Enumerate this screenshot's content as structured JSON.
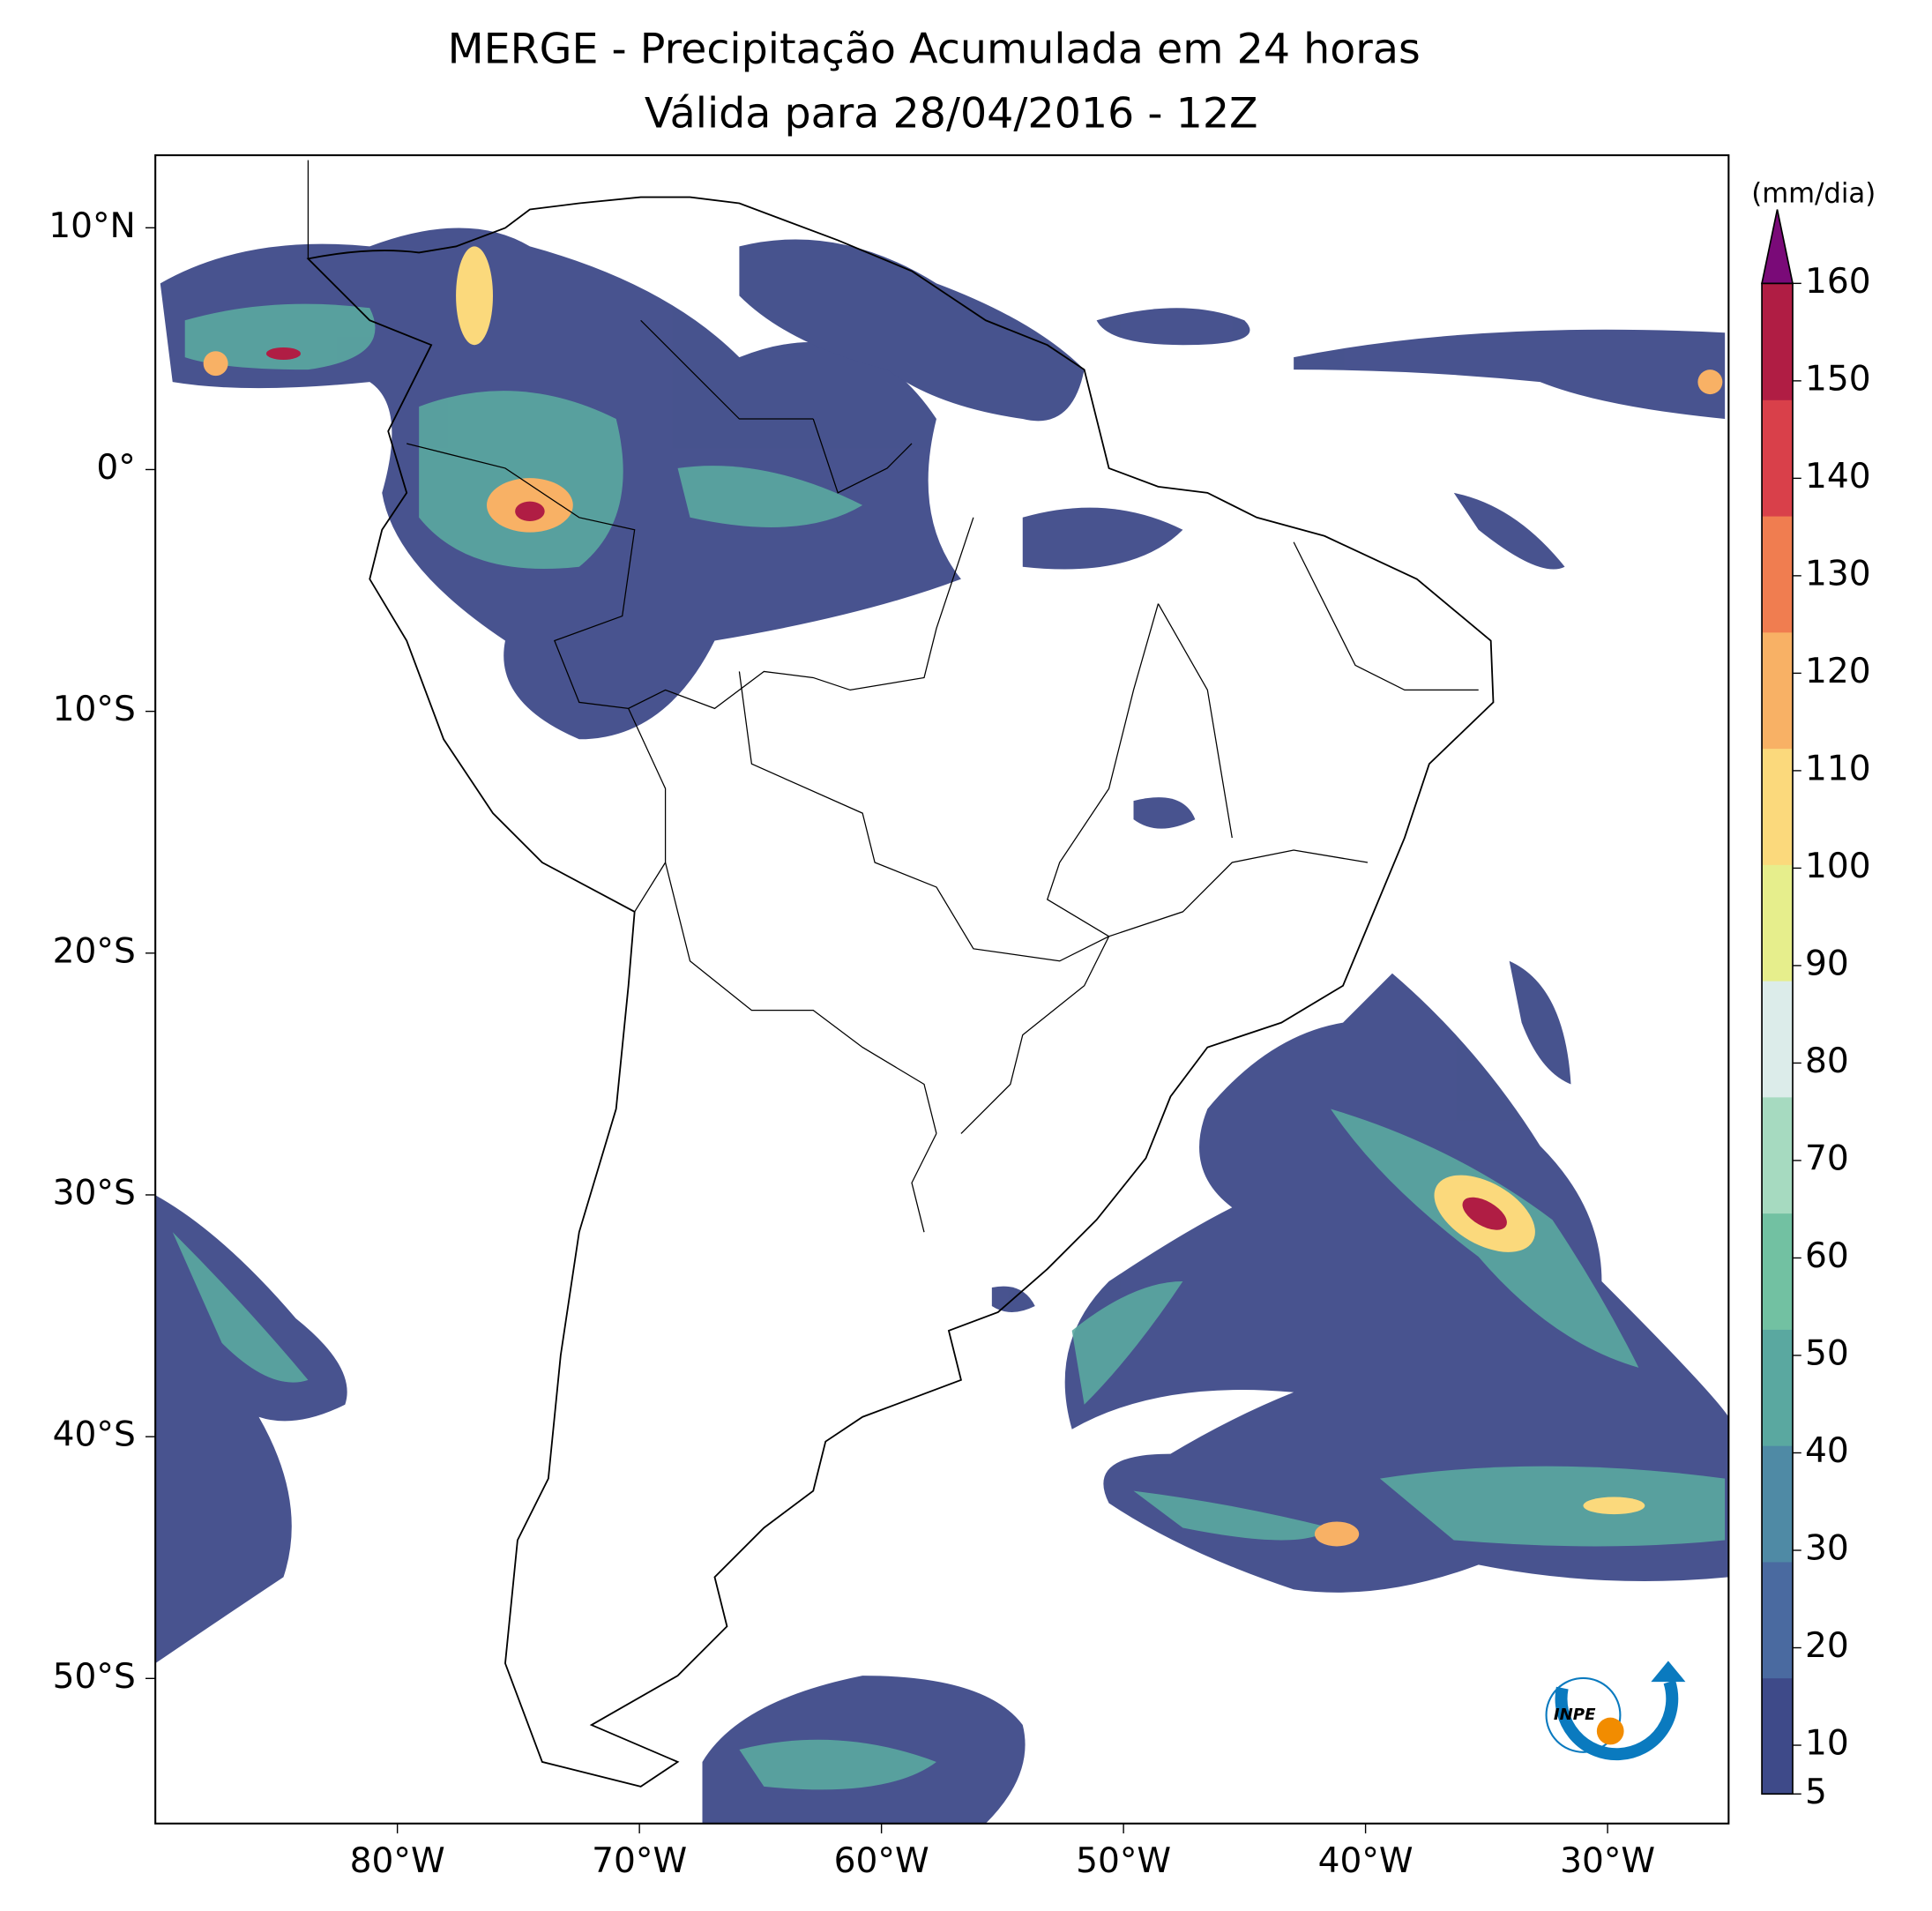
{
  "map": {
    "title": [
      "MERGE - Precipitação Acumulada em 24 horas",
      "Válida para 28/04/2016 - 12Z"
    ],
    "xlim": [
      -90,
      -25
    ],
    "ylim": [
      -56,
      13
    ],
    "xticks": [
      {
        "value": -80,
        "label": "80°W"
      },
      {
        "value": -70,
        "label": "70°W"
      },
      {
        "value": -60,
        "label": "60°W"
      },
      {
        "value": -50,
        "label": "50°W"
      },
      {
        "value": -40,
        "label": "40°W"
      },
      {
        "value": -30,
        "label": "30°W"
      }
    ],
    "yticks": [
      {
        "value": 10,
        "label": "10°N"
      },
      {
        "value": 0,
        "label": "0°"
      },
      {
        "value": -10,
        "label": "10°S"
      },
      {
        "value": -20,
        "label": "20°S"
      },
      {
        "value": -30,
        "label": "30°S"
      },
      {
        "value": -40,
        "label": "40°S"
      },
      {
        "value": -50,
        "label": "50°S"
      }
    ],
    "colorbar": {
      "label": "(mm/dia)",
      "lim": [
        5,
        160
      ],
      "ticks": [
        5,
        10,
        20,
        30,
        40,
        50,
        60,
        70,
        80,
        90,
        100,
        110,
        120,
        130,
        140,
        150,
        160
      ],
      "colors": [
        "#3e4a89",
        "#4a6aa0",
        "#4f8aa5",
        "#5aa8a0",
        "#72c1a2",
        "#a6dac0",
        "#dcecea",
        "#e6ee8c",
        "#fbd97c",
        "#f8b165",
        "#f07d50",
        "#d9404a",
        "#b01d44"
      ],
      "extend_color": "#7a0a78"
    },
    "logo": "INPE"
  }
}
